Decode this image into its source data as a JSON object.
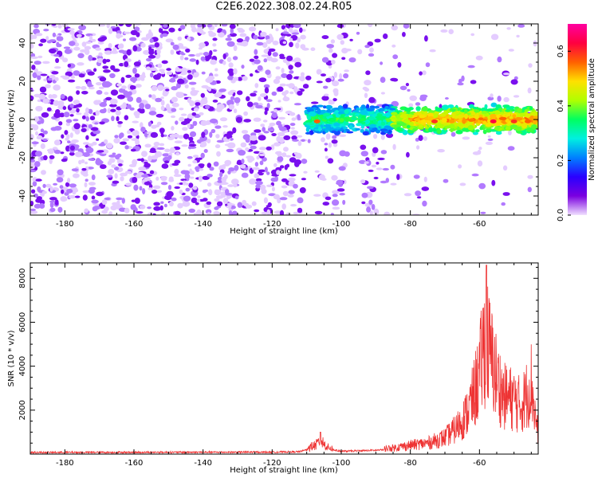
{
  "title": "C2E6.2022.308.02.24.R05",
  "chart_data": [
    {
      "type": "heatmap",
      "xlabel": "Height of straight line (km)",
      "ylabel": "Frequency (Hz)",
      "xlim": [
        -190,
        -43
      ],
      "ylim": [
        -50,
        50
      ],
      "x_ticks": [
        -180,
        -160,
        -140,
        -120,
        -100,
        -80,
        -60
      ],
      "y_ticks": [
        -40,
        -20,
        0,
        20,
        40
      ],
      "colorbar": {
        "label": "Normalized spectral amplitude",
        "range": [
          0,
          0.7
        ],
        "ticks": [
          "0.0",
          "0.2",
          "0.4",
          "0.6"
        ],
        "colors": [
          "#f0e0ff",
          "#7a00e0",
          "#2a00ff",
          "#0080ff",
          "#00f0e0",
          "#00ff60",
          "#b0ff00",
          "#ffe000",
          "#ff6000",
          "#ff0040",
          "#ff00a0"
        ]
      },
      "echo_band": {
        "x_start": -110,
        "x_end": -43,
        "center_hz": 0,
        "halfwidth_hz": 5
      },
      "gaps_km": [
        [
          -111,
          -107
        ],
        [
          -98,
          -94
        ]
      ]
    },
    {
      "type": "line",
      "xlabel": "Height of straight line (km)",
      "ylabel": "SNR (10 * v/v)",
      "xlim": [
        -190,
        -43
      ],
      "ylim": [
        0,
        8700
      ],
      "x_ticks": [
        -180,
        -160,
        -140,
        -120,
        -100,
        -80,
        -60
      ],
      "y_ticks": [
        2000,
        4000,
        6000,
        8000
      ],
      "color": "#ee3333",
      "envelope": {
        "x": [
          -190,
          -120,
          -112,
          -107,
          -106,
          -104,
          -100,
          -90,
          -85,
          -80,
          -75,
          -70,
          -67,
          -64,
          -62,
          -60,
          -59,
          -58,
          -57,
          -56,
          -55,
          -53,
          -50,
          -48,
          -46,
          -45,
          -44,
          -43
        ],
        "y": [
          150,
          180,
          220,
          700,
          1000,
          500,
          250,
          350,
          450,
          650,
          800,
          1200,
          1800,
          2800,
          4000,
          5800,
          7500,
          8600,
          7200,
          6500,
          5500,
          4200,
          4000,
          3500,
          4500,
          5300,
          3000,
          1500
        ]
      },
      "peaks": [
        {
          "x": -58,
          "y": 8600
        },
        {
          "x": -106,
          "y": 1000
        }
      ]
    }
  ]
}
